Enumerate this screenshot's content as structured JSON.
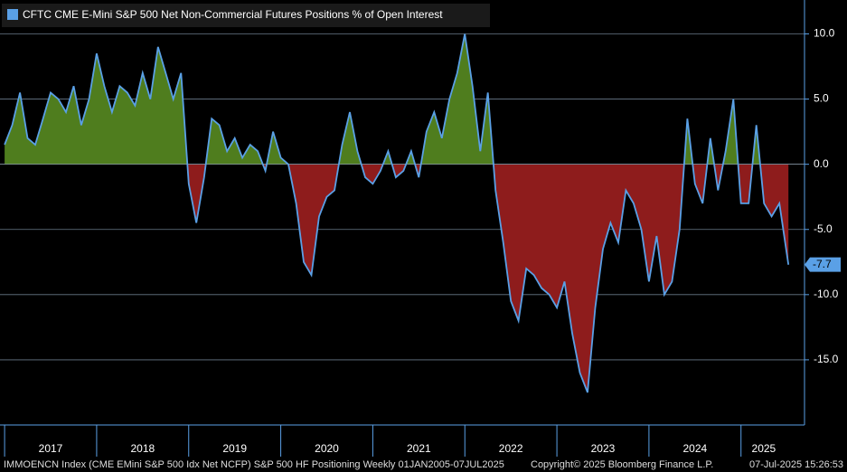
{
  "chart_data": {
    "type": "area-line",
    "title": "CFTC CME E-Mini S&P 500 Net Non-Commercial Futures Positions % of Open Interest",
    "footer_left": "IMMOENCN Index (CME EMini S&P 500 Idx Net NCFP) S&P 500 HF Positioning  Weekly 01JAN2005-07JUL2025",
    "footer_center": "Copyright© 2025 Bloomberg Finance L.P.",
    "footer_right": "07-Jul-2025 15:26:53",
    "x": [
      2017,
      2017.083,
      2017.167,
      2017.25,
      2017.333,
      2017.417,
      2017.5,
      2017.583,
      2017.667,
      2017.75,
      2017.833,
      2017.917,
      2018,
      2018.083,
      2018.167,
      2018.25,
      2018.333,
      2018.417,
      2018.5,
      2018.583,
      2018.667,
      2018.75,
      2018.833,
      2018.917,
      2019,
      2019.083,
      2019.167,
      2019.25,
      2019.333,
      2019.417,
      2019.5,
      2019.583,
      2019.667,
      2019.75,
      2019.833,
      2019.917,
      2020,
      2020.083,
      2020.167,
      2020.25,
      2020.333,
      2020.417,
      2020.5,
      2020.583,
      2020.667,
      2020.75,
      2020.833,
      2020.917,
      2021,
      2021.083,
      2021.167,
      2021.25,
      2021.333,
      2021.417,
      2021.5,
      2021.583,
      2021.667,
      2021.75,
      2021.833,
      2021.917,
      2022,
      2022.083,
      2022.167,
      2022.25,
      2022.333,
      2022.417,
      2022.5,
      2022.583,
      2022.667,
      2022.75,
      2022.833,
      2022.917,
      2023,
      2023.083,
      2023.167,
      2023.25,
      2023.333,
      2023.417,
      2023.5,
      2023.583,
      2023.667,
      2023.75,
      2023.833,
      2023.917,
      2024,
      2024.083,
      2024.167,
      2024.25,
      2024.333,
      2024.417,
      2024.5,
      2024.583,
      2024.667,
      2024.75,
      2024.833,
      2024.917,
      2025,
      2025.083,
      2025.167,
      2025.25,
      2025.333,
      2025.417,
      2025.515
    ],
    "series": [
      {
        "name": "CFTC CME E-Mini S&P 500 Net Non-Commercial Futures Positions % of Open Interest",
        "color": "#5aa0e6",
        "values": [
          1.5,
          3,
          5.5,
          2,
          1.5,
          3.5,
          5.5,
          5,
          4,
          6,
          3,
          5,
          8.5,
          6,
          4,
          6,
          5.5,
          4.5,
          7,
          5,
          9,
          7,
          5,
          7,
          -1.5,
          -4.5,
          -1,
          3.5,
          3,
          1,
          2,
          0.5,
          1.5,
          1,
          -0.5,
          2.5,
          0.5,
          0,
          -3,
          -7.5,
          -8.5,
          -4,
          -2.5,
          -2,
          1.5,
          4,
          1,
          -1,
          -1.5,
          -0.5,
          1,
          -1,
          -0.5,
          1,
          -1,
          2.5,
          4,
          2,
          5,
          7,
          10,
          6,
          1,
          5.5,
          -2,
          -6,
          -10.5,
          -12,
          -8,
          -8.5,
          -9.5,
          -10,
          -11,
          -9,
          -13,
          -16,
          -17.5,
          -11,
          -6.5,
          -4.5,
          -6,
          -2,
          -3,
          -5,
          -9,
          -5.5,
          -10,
          -9,
          -5,
          3.5,
          -1.5,
          -3,
          2,
          -2,
          1,
          5,
          -3,
          -3,
          3,
          -3,
          -4,
          -3,
          -7.7
        ]
      }
    ],
    "positive_fill": "#4f7d1e",
    "negative_fill": "#8e1c1c",
    "xlim": [
      2016.95,
      2025.69
    ],
    "xticks": [
      2017,
      2018,
      2019,
      2020,
      2021,
      2022,
      2023,
      2024,
      2025
    ],
    "ylim": [
      -20,
      12.6
    ],
    "yticks": [
      {
        "value": 10,
        "label": "10.0"
      },
      {
        "value": 5,
        "label": "5.0"
      },
      {
        "value": 0,
        "label": "0.0"
      },
      {
        "value": -5,
        "label": "-5.0"
      },
      {
        "value": -10,
        "label": "-10.0"
      },
      {
        "value": -15,
        "label": "-15.0"
      }
    ],
    "grid": true
  }
}
